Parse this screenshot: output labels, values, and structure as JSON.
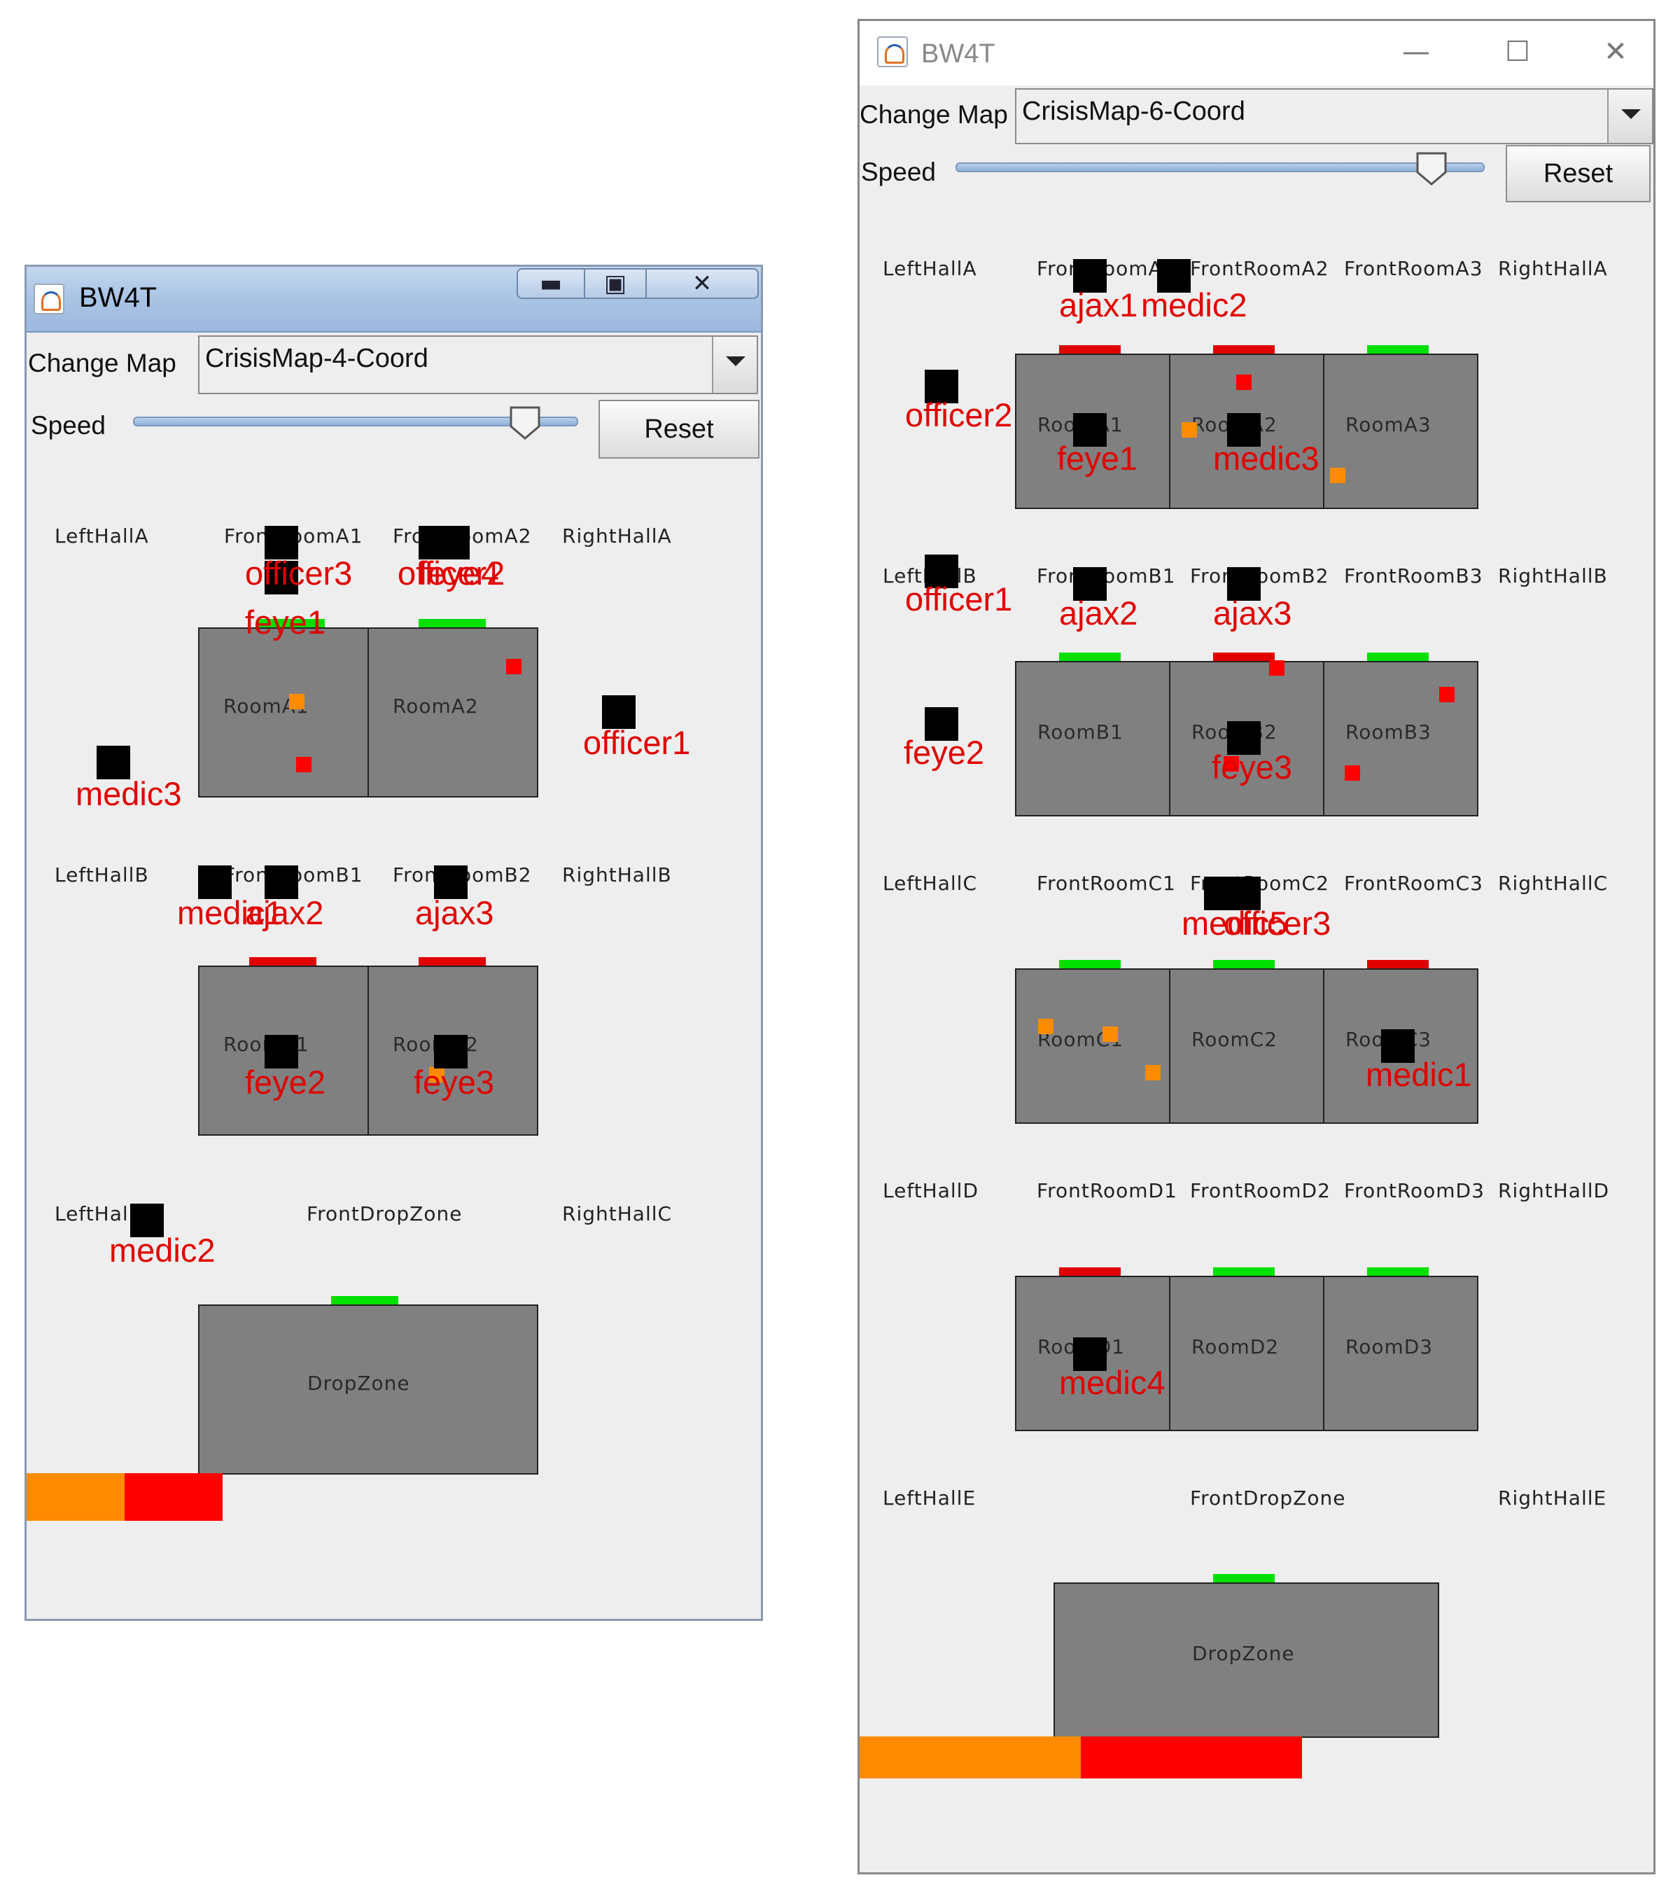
{
  "colors": {
    "door_open": "#00e000",
    "door_closed": "#e00000",
    "block_red": "#ff0000",
    "block_orange": "#ff8c00",
    "room_fill": "#808080",
    "agent": "#000000",
    "agent_label": "#e00000"
  },
  "left_window": {
    "title": "BW4T",
    "icons": [
      "java-cup-icon",
      "minimize-icon",
      "maximize-icon",
      "close-icon"
    ],
    "change_map_label": "Change Map",
    "map_value": "CrisisMap-4-Coord",
    "speed_label": "Speed",
    "speed_level": 0.88,
    "reset_label": "Reset",
    "hall_labels": [
      "LeftHallA",
      "FrontRoomA1",
      "FrontRoomA2",
      "RightHallA",
      "LeftHallB",
      "FrontRoomB1",
      "FrontRoomB2",
      "RightHallB",
      "LeftHallC",
      "FrontDropZone",
      "RightHallC"
    ],
    "room_labels": [
      "RoomA1",
      "RoomA2",
      "RoomB1",
      "RoomB2",
      "DropZone"
    ],
    "agents": [
      "officer3",
      "officer2",
      "feye4",
      "feye1",
      "officer1",
      "medic3",
      "medic1",
      "ajax2",
      "ajax3",
      "feye2",
      "feye3",
      "medic2"
    ],
    "sequence": [
      "orange",
      "red"
    ]
  },
  "right_window": {
    "title": "BW4T",
    "icons": [
      "java-cup-icon",
      "minimize-icon",
      "maximize-icon",
      "close-icon"
    ],
    "change_map_label": "Change Map",
    "map_value": "CrisisMap-6-Coord",
    "speed_label": "Speed",
    "speed_level": 0.9,
    "reset_label": "Reset",
    "hall_labels": [
      "LeftHallA",
      "FrontRoomA1",
      "FrontRoomA2",
      "FrontRoomA3",
      "RightHallA",
      "LeftHallB",
      "FrontRoomB1",
      "FrontRoomB2",
      "FrontRoomB3",
      "RightHallB",
      "LeftHallC",
      "FrontRoomC1",
      "FrontRoomC2",
      "FrontRoomC3",
      "RightHallC",
      "LeftHallD",
      "FrontRoomD1",
      "FrontRoomD2",
      "FrontRoomD3",
      "RightHallD",
      "LeftHallE",
      "FrontDropZone",
      "RightHallE"
    ],
    "room_labels": [
      "RoomA1",
      "RoomA2",
      "RoomA3",
      "RoomB1",
      "RoomB2",
      "RoomB3",
      "RoomC1",
      "RoomC2",
      "RoomC3",
      "RoomD1",
      "RoomD2",
      "RoomD3",
      "DropZone"
    ],
    "agents": [
      "ajax1",
      "medic2",
      "officer2",
      "feye1",
      "medic3",
      "officer1",
      "ajax2",
      "ajax3",
      "feye2",
      "feye3",
      "medic5",
      "officer3",
      "medic1",
      "medic4"
    ],
    "sequence": [
      "orange",
      "red"
    ]
  }
}
